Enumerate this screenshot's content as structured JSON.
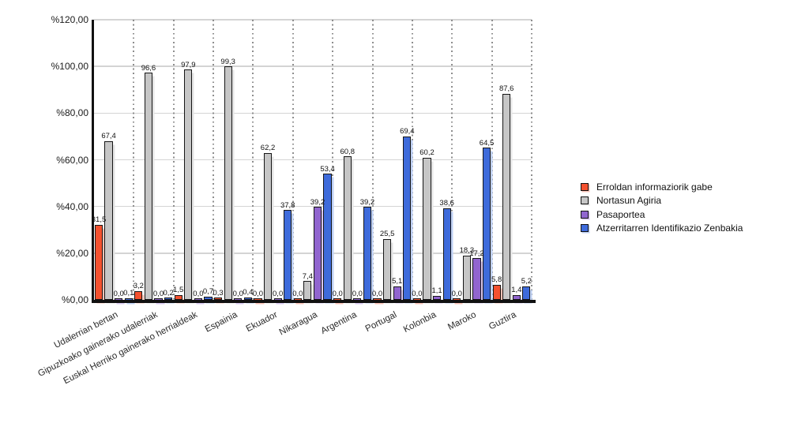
{
  "chart_data": {
    "type": "bar",
    "title": "",
    "xlabel": "",
    "ylabel": "",
    "legend_position": "right",
    "grid": {
      "horizontal": true,
      "vertical_dotted": true
    },
    "y_axis": {
      "min": 0,
      "max": 120,
      "tick_step": 20,
      "ticks": [
        {
          "value": 120,
          "label": "%120,00"
        },
        {
          "value": 100,
          "label": "%100,00"
        },
        {
          "value": 80,
          "label": "%80,00"
        },
        {
          "value": 60,
          "label": "%60,00"
        },
        {
          "value": 40,
          "label": "%40,00"
        },
        {
          "value": 20,
          "label": "%20,00"
        },
        {
          "value": 0,
          "label": "%0,00"
        }
      ]
    },
    "categories": [
      "Udalerrian bertan",
      "Gipuzkoako gainerako udalerriak",
      "Euskal Herriko gainerako herrialdeak",
      "Espainia",
      "Ekuador",
      "Nikaragua",
      "Argentina",
      "Portugal",
      "Kolonbia",
      "Maroko",
      "Guztira"
    ],
    "series": [
      {
        "name": "Erroldan informaziorik gabe",
        "color": "#f4512f",
        "shadow_color": "#fbc4b8",
        "values": [
          31.5,
          3.2,
          1.5,
          0.3,
          0.0,
          0.0,
          0.0,
          0.0,
          0.0,
          0.0,
          5.8
        ],
        "labels": [
          "31,5",
          "3,2",
          "1,5",
          "0,3",
          "0,0",
          "0,0",
          "0,0",
          "0,0",
          "0,0",
          "0,0",
          "5,8"
        ]
      },
      {
        "name": "Nortasun Agiria",
        "color": "#c6c6c6",
        "shadow_color": "#e4e4e4",
        "values": [
          67.4,
          96.6,
          97.9,
          99.3,
          62.2,
          7.4,
          60.8,
          25.5,
          60.2,
          18.3,
          87.6
        ],
        "labels": [
          "67,4",
          "96,6",
          "97,9",
          "99,3",
          "62,2",
          "7,4",
          "60,8",
          "25,5",
          "60,2",
          "18,3",
          "87,6"
        ]
      },
      {
        "name": "Pasaportea",
        "color": "#9165cf",
        "shadow_color": "#d9c8f2",
        "values": [
          0.0,
          0.0,
          0.0,
          0.0,
          0.0,
          39.2,
          0.0,
          5.1,
          1.1,
          17.2,
          1.4
        ],
        "labels": [
          "0,0",
          "0,0",
          "0,0",
          "0,0",
          "0,0",
          "39,2",
          "0,0",
          "5,1",
          "1,1",
          "17,2",
          "1,4"
        ]
      },
      {
        "name": "Atzerritarren Identifikazio Zenbakia",
        "color": "#3e6bdb",
        "shadow_color": "#c0d2f6",
        "values": [
          0.1,
          0.2,
          0.7,
          0.4,
          37.8,
          53.4,
          39.2,
          69.4,
          38.6,
          64.5,
          5.2
        ],
        "labels": [
          "0,1",
          "0,2",
          "0,7",
          "0,4",
          "37,8",
          "53,4",
          "39,2",
          "69,4",
          "38,6",
          "64,5",
          "5,2"
        ]
      }
    ]
  }
}
